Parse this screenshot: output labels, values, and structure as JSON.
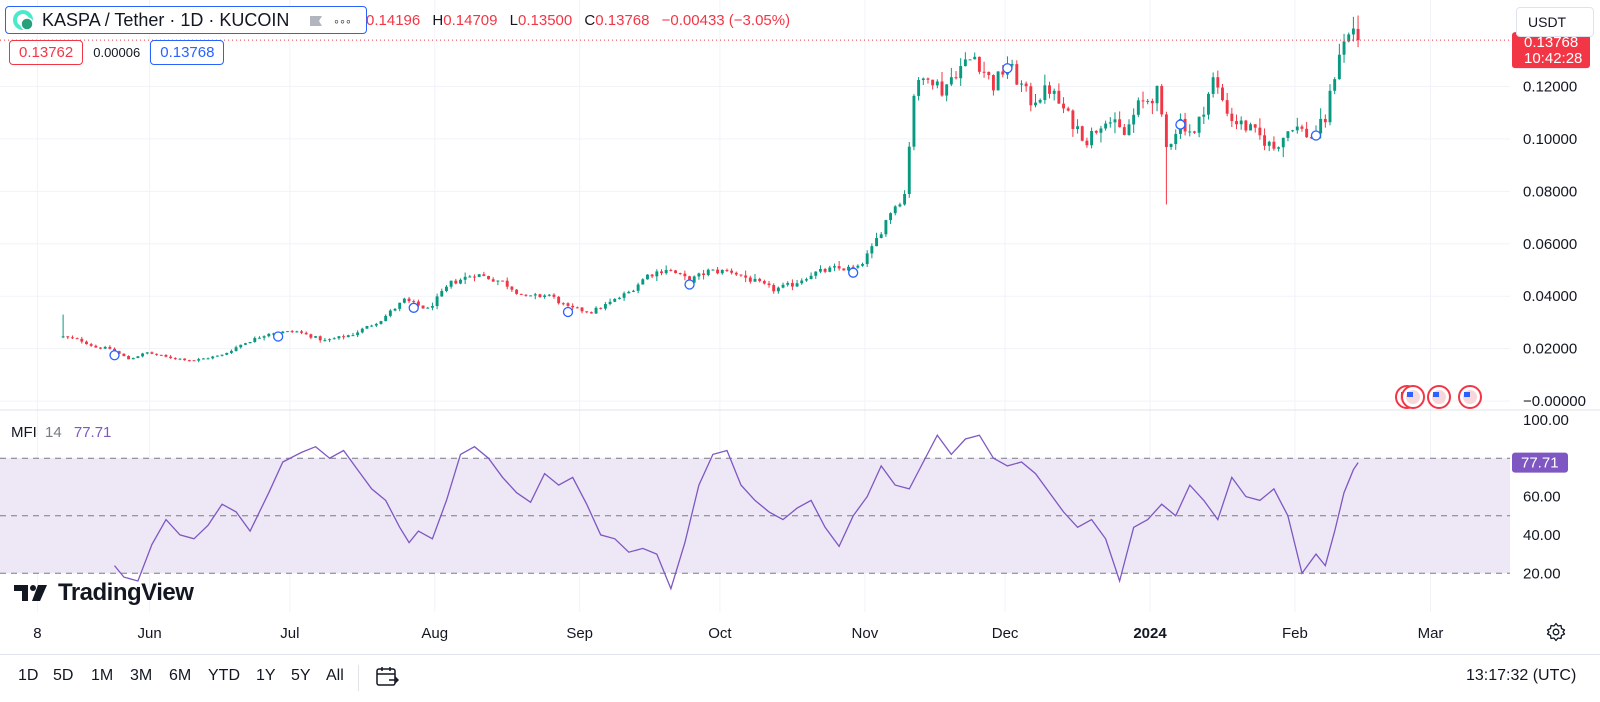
{
  "header": {
    "symbol_title": "KASPA / Tether · 1D · KUCOIN",
    "ohlc": {
      "o_value": "0.14196",
      "h_label": "H",
      "h_value": "0.14709",
      "l_label": "L",
      "l_value": "0.13500",
      "c_label": "C",
      "c_value": "0.13768",
      "change": "−0.00433 (−3.05%)"
    },
    "bid": "0.13762",
    "spread": "0.00006",
    "ask": "0.13768",
    "currency": "USDT"
  },
  "price_label": {
    "price": "0.13768",
    "countdown": "10:42:28"
  },
  "mfi_legend": {
    "name": "MFI",
    "length": "14",
    "value": "77.71"
  },
  "brand": {
    "name": "TradingView"
  },
  "bottom_bar": {
    "ranges": [
      "1D",
      "5D",
      "1M",
      "3M",
      "6M",
      "YTD",
      "1Y",
      "5Y",
      "All"
    ],
    "clock": "13:17:32 (UTC)"
  },
  "colors": {
    "up": "#089981",
    "down": "#f23645",
    "mfi_line": "#7e57c2",
    "mfi_band": "#ede7f6",
    "accent": "#2962ff"
  },
  "chart_data": [
    {
      "type": "candlestick",
      "title": "KASPA / Tether · 1D · KUCOIN",
      "y_axis": {
        "position": "right",
        "ticks": [
          "0.12000",
          "0.10000",
          "0.08000",
          "0.06000",
          "0.04000",
          "0.02000",
          "−0.00000"
        ],
        "ylim": [
          -0.0015,
          0.153
        ]
      },
      "x_axis": {
        "labels": [
          "8",
          "Jun",
          "Jul",
          "Aug",
          "Sep",
          "Oct",
          "Nov",
          "Dec",
          "2024",
          "Feb",
          "Mar"
        ],
        "label_dates": [
          "2023-05-08",
          "2023-06-01",
          "2023-07-01",
          "2023-08-01",
          "2023-09-01",
          "2023-10-01",
          "2023-11-01",
          "2023-12-01",
          "2024-01-01",
          "2024-02-01",
          "2024-03-01"
        ],
        "xlim": [
          "2023-04-30",
          "2024-03-18"
        ]
      },
      "first_date": "2023-05-13",
      "last_date": "2024-02-14",
      "close_anchors": [
        [
          "2023-05-13",
          0.0245
        ],
        [
          "2023-05-17",
          0.023
        ],
        [
          "2023-05-20",
          0.0205
        ],
        [
          "2023-05-23",
          0.02
        ],
        [
          "2023-05-27",
          0.016
        ],
        [
          "2023-05-31",
          0.0185
        ],
        [
          "2023-06-04",
          0.0168
        ],
        [
          "2023-06-10",
          0.0155
        ],
        [
          "2023-06-16",
          0.0175
        ],
        [
          "2023-06-20",
          0.0215
        ],
        [
          "2023-06-26",
          0.026
        ],
        [
          "2023-07-02",
          0.0265
        ],
        [
          "2023-07-08",
          0.023
        ],
        [
          "2023-07-14",
          0.0255
        ],
        [
          "2023-07-20",
          0.031
        ],
        [
          "2023-07-25",
          0.0385
        ],
        [
          "2023-07-30",
          0.035
        ],
        [
          "2023-08-04",
          0.045
        ],
        [
          "2023-08-09",
          0.0485
        ],
        [
          "2023-08-15",
          0.0455
        ],
        [
          "2023-08-20",
          0.0395
        ],
        [
          "2023-08-25",
          0.0405
        ],
        [
          "2023-08-29",
          0.0355
        ],
        [
          "2023-09-03",
          0.034
        ],
        [
          "2023-09-07",
          0.0375
        ],
        [
          "2023-09-11",
          0.0415
        ],
        [
          "2023-09-15",
          0.048
        ],
        [
          "2023-09-19",
          0.0505
        ],
        [
          "2023-09-24",
          0.046
        ],
        [
          "2023-09-28",
          0.0495
        ],
        [
          "2023-10-03",
          0.0495
        ],
        [
          "2023-10-08",
          0.0455
        ],
        [
          "2023-10-12",
          0.0425
        ],
        [
          "2023-10-16",
          0.0445
        ],
        [
          "2023-10-20",
          0.0485
        ],
        [
          "2023-10-25",
          0.0505
        ],
        [
          "2023-10-30",
          0.0505
        ],
        [
          "2023-11-02",
          0.058
        ],
        [
          "2023-11-06",
          0.0725
        ],
        [
          "2023-11-09",
          0.079
        ],
        [
          "2023-11-11",
          0.1175
        ],
        [
          "2023-11-14",
          0.1255
        ],
        [
          "2023-11-17",
          0.1185
        ],
        [
          "2023-11-20",
          0.126
        ],
        [
          "2023-11-24",
          0.1315
        ],
        [
          "2023-11-28",
          0.1205
        ],
        [
          "2023-12-01",
          0.1285
        ],
        [
          "2023-12-06",
          0.1145
        ],
        [
          "2023-12-10",
          0.119
        ],
        [
          "2023-12-14",
          0.1085
        ],
        [
          "2023-12-18",
          0.0995
        ],
        [
          "2023-12-22",
          0.1085
        ],
        [
          "2023-12-26",
          0.1015
        ],
        [
          "2023-12-29",
          0.1125
        ],
        [
          "2024-01-02",
          0.1175
        ],
        [
          "2024-01-04",
          0.0965
        ],
        [
          "2024-01-07",
          0.107
        ],
        [
          "2024-01-10",
          0.1015
        ],
        [
          "2024-01-14",
          0.1225
        ],
        [
          "2024-01-18",
          0.1075
        ],
        [
          "2024-01-22",
          0.1035
        ],
        [
          "2024-01-27",
          0.0965
        ],
        [
          "2024-01-31",
          0.1055
        ],
        [
          "2024-02-04",
          0.1005
        ],
        [
          "2024-02-07",
          0.1075
        ],
        [
          "2024-02-10",
          0.1335
        ],
        [
          "2024-02-13",
          0.1425
        ],
        [
          "2024-02-14",
          0.1377
        ]
      ],
      "last_candle": {
        "open": 0.14196,
        "high": 0.14709,
        "low": 0.135,
        "close": 0.13768
      },
      "event_markers": [
        "2023-05-24",
        "2023-06-28",
        "2023-07-27",
        "2023-08-29",
        "2023-09-24",
        "2023-10-29",
        "2023-12-01",
        "2024-01-07",
        "2024-02-05"
      ]
    },
    {
      "type": "line",
      "title": "MFI 14",
      "y_axis": {
        "position": "right",
        "ticks": [
          "100.00",
          "60.00",
          "40.00",
          "20.00"
        ],
        "ylim": [
          4,
          102
        ]
      },
      "band": [
        20,
        80
      ],
      "midline": 50,
      "last_value": 77.71,
      "series": [
        {
          "name": "MFI",
          "points": [
            [
              "2023-05-24",
              24
            ],
            [
              "2023-05-26",
              18
            ],
            [
              "2023-05-29",
              16
            ],
            [
              "2023-06-01",
              35
            ],
            [
              "2023-06-04",
              48
            ],
            [
              "2023-06-07",
              40
            ],
            [
              "2023-06-10",
              38
            ],
            [
              "2023-06-13",
              45
            ],
            [
              "2023-06-16",
              56
            ],
            [
              "2023-06-19",
              52
            ],
            [
              "2023-06-22",
              42
            ],
            [
              "2023-06-26",
              62
            ],
            [
              "2023-06-29",
              78
            ],
            [
              "2023-07-03",
              83
            ],
            [
              "2023-07-06",
              86
            ],
            [
              "2023-07-09",
              80
            ],
            [
              "2023-07-12",
              84
            ],
            [
              "2023-07-15",
              74
            ],
            [
              "2023-07-18",
              64
            ],
            [
              "2023-07-21",
              58
            ],
            [
              "2023-07-24",
              44
            ],
            [
              "2023-07-26",
              36
            ],
            [
              "2023-07-28",
              42
            ],
            [
              "2023-07-31",
              38
            ],
            [
              "2023-08-03",
              58
            ],
            [
              "2023-08-06",
              82
            ],
            [
              "2023-08-09",
              86
            ],
            [
              "2023-08-12",
              80
            ],
            [
              "2023-08-15",
              70
            ],
            [
              "2023-08-18",
              62
            ],
            [
              "2023-08-21",
              57
            ],
            [
              "2023-08-24",
              72
            ],
            [
              "2023-08-27",
              66
            ],
            [
              "2023-08-30",
              70
            ],
            [
              "2023-09-02",
              56
            ],
            [
              "2023-09-05",
              40
            ],
            [
              "2023-09-08",
              38
            ],
            [
              "2023-09-11",
              31
            ],
            [
              "2023-09-14",
              33
            ],
            [
              "2023-09-17",
              30
            ],
            [
              "2023-09-20",
              12
            ],
            [
              "2023-09-23",
              36
            ],
            [
              "2023-09-26",
              66
            ],
            [
              "2023-09-29",
              82
            ],
            [
              "2023-10-02",
              84
            ],
            [
              "2023-10-05",
              66
            ],
            [
              "2023-10-08",
              58
            ],
            [
              "2023-10-11",
              52
            ],
            [
              "2023-10-14",
              48
            ],
            [
              "2023-10-17",
              54
            ],
            [
              "2023-10-20",
              58
            ],
            [
              "2023-10-23",
              44
            ],
            [
              "2023-10-26",
              34
            ],
            [
              "2023-10-29",
              50
            ],
            [
              "2023-11-01",
              60
            ],
            [
              "2023-11-04",
              76
            ],
            [
              "2023-11-07",
              66
            ],
            [
              "2023-11-10",
              64
            ],
            [
              "2023-11-13",
              78
            ],
            [
              "2023-11-16",
              92
            ],
            [
              "2023-11-19",
              82
            ],
            [
              "2023-11-22",
              90
            ],
            [
              "2023-11-25",
              92
            ],
            [
              "2023-11-28",
              80
            ],
            [
              "2023-12-01",
              76
            ],
            [
              "2023-12-04",
              78
            ],
            [
              "2023-12-07",
              72
            ],
            [
              "2023-12-10",
              62
            ],
            [
              "2023-12-13",
              52
            ],
            [
              "2023-12-16",
              44
            ],
            [
              "2023-12-19",
              48
            ],
            [
              "2023-12-22",
              38
            ],
            [
              "2023-12-25",
              16
            ],
            [
              "2023-12-28",
              44
            ],
            [
              "2023-12-31",
              48
            ],
            [
              "2024-01-03",
              56
            ],
            [
              "2024-01-06",
              50
            ],
            [
              "2024-01-09",
              66
            ],
            [
              "2024-01-12",
              58
            ],
            [
              "2024-01-15",
              48
            ],
            [
              "2024-01-18",
              70
            ],
            [
              "2024-01-21",
              60
            ],
            [
              "2024-01-24",
              58
            ],
            [
              "2024-01-27",
              64
            ],
            [
              "2024-01-30",
              50
            ],
            [
              "2024-02-02",
              20
            ],
            [
              "2024-02-05",
              30
            ],
            [
              "2024-02-07",
              24
            ],
            [
              "2024-02-09",
              42
            ],
            [
              "2024-02-11",
              62
            ],
            [
              "2024-02-13",
              74
            ],
            [
              "2024-02-14",
              77.71
            ]
          ]
        }
      ]
    }
  ]
}
